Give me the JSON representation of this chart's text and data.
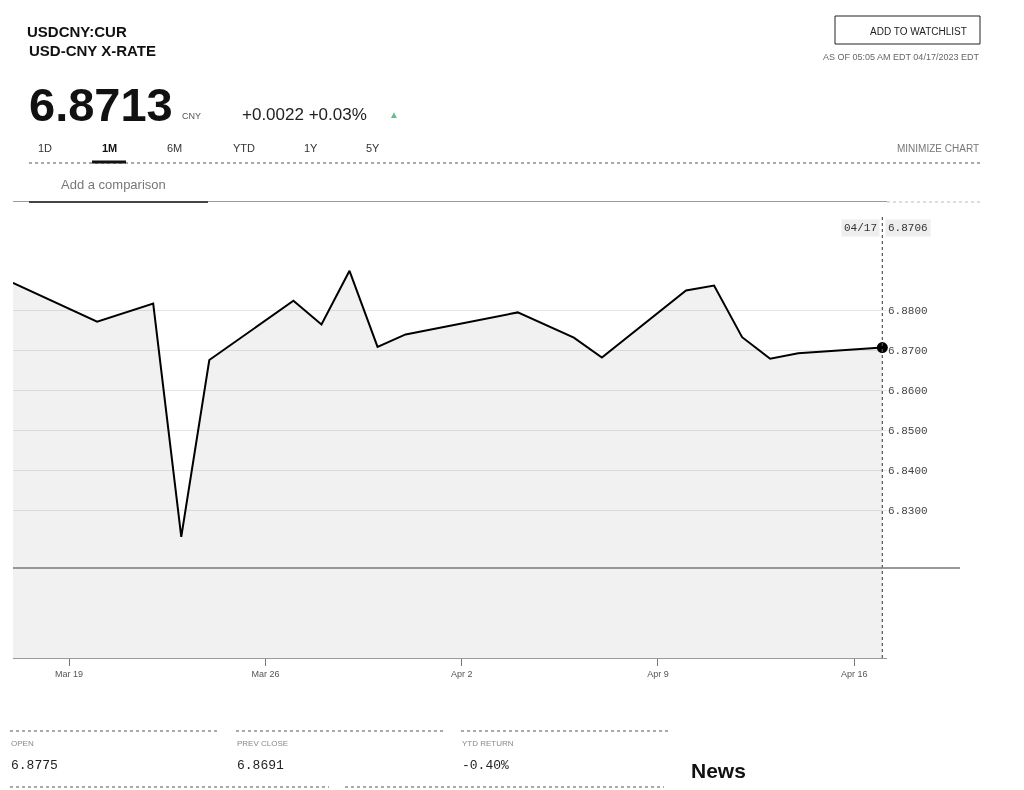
{
  "chart_data": {
    "type": "area",
    "title": "USDCNY:CUR",
    "subtitle": "USD-CNY X-RATE",
    "x": [
      "2023-03-17",
      "2023-03-20",
      "2023-03-22",
      "2023-03-23",
      "2023-03-24",
      "2023-03-27",
      "2023-03-28",
      "2023-03-29",
      "2023-03-30",
      "2023-03-31",
      "2023-04-04",
      "2023-04-06",
      "2023-04-07",
      "2023-04-10",
      "2023-04-11",
      "2023-04-12",
      "2023-04-13",
      "2023-04-14",
      "2023-04-17"
    ],
    "series": [
      {
        "color": "#000000",
        "values": [
          6.8868,
          6.8771,
          6.8816,
          6.8233,
          6.8675,
          6.8823,
          6.8764,
          6.8898,
          6.8708,
          6.8739,
          6.8794,
          6.8731,
          6.8681,
          6.8849,
          6.8861,
          6.8732,
          6.8678,
          6.8692,
          6.8706
        ]
      },
      {
        "type": "scatter",
        "x": [
          "2023-04-17"
        ],
        "values": [
          6.8706
        ],
        "color": "#000000",
        "marker": "circle"
      }
    ],
    "xlim": [
      "2023-03-17",
      "2023-04-17T04:00"
    ],
    "xticks": [
      {
        "value": "2023-03-19",
        "label": "Mar 19"
      },
      {
        "value": "2023-03-26",
        "label": "Mar 26"
      },
      {
        "value": "2023-04-02",
        "label": "Apr 2"
      },
      {
        "value": "2023-04-09",
        "label": "Apr 9"
      },
      {
        "value": "2023-04-16",
        "label": "Apr 16"
      }
    ],
    "ylim": [
      6.793,
      6.907
    ],
    "yticks": [
      {
        "value": 6.83,
        "label": "6.8300"
      },
      {
        "value": 6.84,
        "label": "6.8400"
      },
      {
        "value": 6.85,
        "label": "6.8500"
      },
      {
        "value": 6.86,
        "label": "6.8600"
      },
      {
        "value": 6.87,
        "label": "6.8700"
      },
      {
        "value": 6.88,
        "label": "6.8800"
      }
    ],
    "grid": "y",
    "ref_lines": [
      {
        "axis": "x",
        "value": "2023-04-17",
        "label": "04/17",
        "line_style": "dotted",
        "color": "#555555"
      },
      {
        "axis": "y",
        "value": 6.8155,
        "color": "#777777"
      }
    ],
    "annotations": [
      "6.8713",
      "CNY",
      "+0.0022 +0.03%",
      "▲",
      "ADD TO WATCHLIST",
      "AS OF 05:05 AM EDT 04/17/2023 EDT",
      "1D",
      "1M",
      "6M",
      "YTD",
      "1Y",
      "5Y",
      "MINIMIZE CHART",
      "Add a comparison",
      "OPEN",
      "6.8775",
      "PREV CLOSE",
      "6.8691",
      "YTD RETURN",
      "-0.40%",
      "News",
      "6.8706"
    ]
  }
}
